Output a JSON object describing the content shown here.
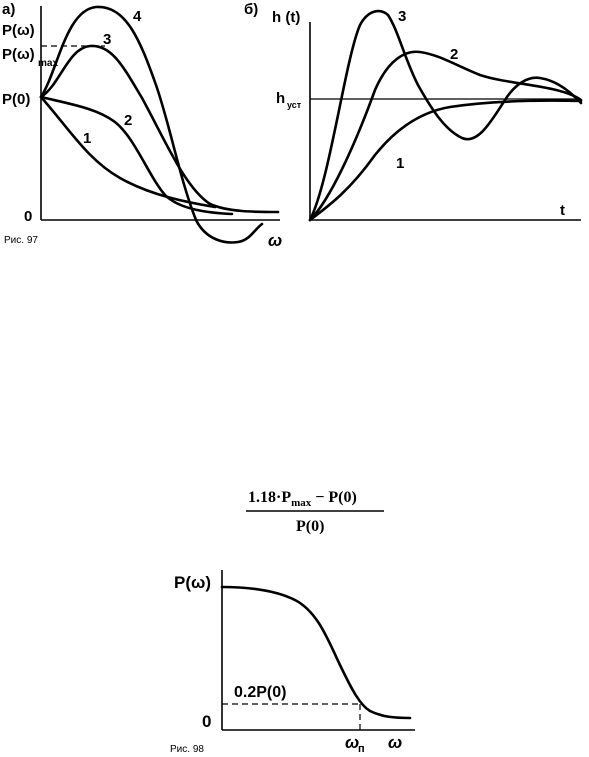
{
  "fig97": {
    "caption": "Рис. 97",
    "panel_a": {
      "tag": "а)",
      "y_labels": {
        "p_omega": "P(ω)",
        "p_omega_max_main": "P(ω)",
        "p_omega_max_sub": "max",
        "p0": "P(0)",
        "zero": "0"
      },
      "x_label": "ω",
      "curve_labels": [
        "1",
        "2",
        "3",
        "4"
      ]
    },
    "panel_b": {
      "tag": "б)",
      "y_label": "h (t)",
      "h_label_main": "h",
      "h_label_sub": "уст",
      "x_label": "t",
      "curve_labels": [
        "1",
        "2",
        "3"
      ]
    }
  },
  "formula": {
    "num_a": "1.18·P",
    "num_sub": "max",
    "num_b": " − P(0)",
    "den": "P(0)"
  },
  "fig98": {
    "caption": "Рис. 98",
    "y_label": "P(ω)",
    "zero": "0",
    "level_label": "0.2P(0)",
    "x_tick_main": "ω",
    "x_tick_sub": "п",
    "x_label": "ω"
  }
}
